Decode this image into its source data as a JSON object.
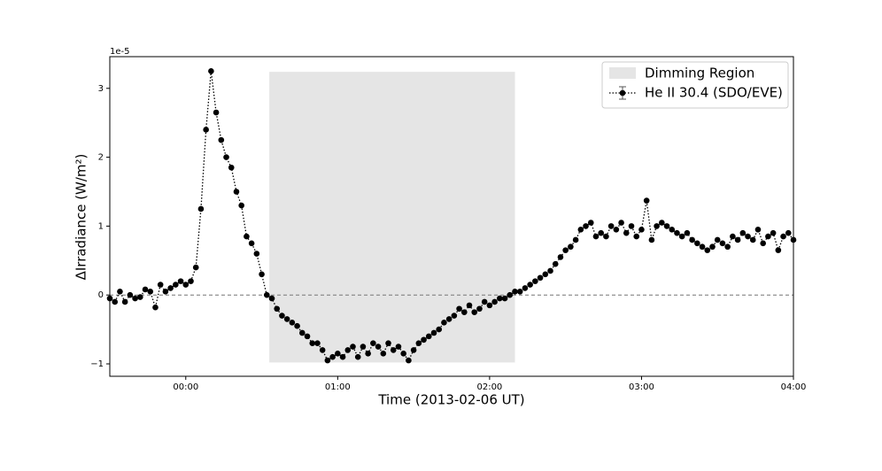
{
  "chart_data": {
    "type": "line",
    "xlabel": "Time (2013-02-06 UT)",
    "ylabel": "ΔIrradiance (W/m²)",
    "y_offset_label": "1e-5",
    "xlim": [
      -30,
      240
    ],
    "ylim": [
      -1.18,
      3.46
    ],
    "xticks": [
      {
        "value": 0,
        "label": "00:00"
      },
      {
        "value": 60,
        "label": "01:00"
      },
      {
        "value": 120,
        "label": "02:00"
      },
      {
        "value": 180,
        "label": "03:00"
      },
      {
        "value": 240,
        "label": "04:00"
      }
    ],
    "yticks": [
      {
        "value": -1,
        "label": "−1"
      },
      0,
      1,
      2,
      3
    ],
    "hline": 0,
    "legend": "upper right",
    "span": {
      "name": "Dimming Region",
      "color": "#e5e5e5",
      "x": [
        33,
        130
      ],
      "y": [
        -0.98,
        3.24
      ]
    },
    "x": [
      -30,
      -28,
      -26,
      -24,
      -22,
      -20,
      -18,
      -16,
      -14,
      -12,
      -10,
      -8,
      -6,
      -4,
      -2,
      0,
      2,
      4,
      6,
      8,
      10,
      12,
      14,
      16,
      18,
      20,
      22,
      24,
      26,
      28,
      30,
      32,
      34,
      36,
      38,
      40,
      42,
      44,
      46,
      48,
      50,
      52,
      54,
      56,
      58,
      60,
      62,
      64,
      66,
      68,
      70,
      72,
      74,
      76,
      78,
      80,
      82,
      84,
      86,
      88,
      90,
      92,
      94,
      96,
      98,
      100,
      102,
      104,
      106,
      108,
      110,
      112,
      114,
      116,
      118,
      120,
      122,
      124,
      126,
      128,
      130,
      132,
      134,
      136,
      138,
      140,
      142,
      144,
      146,
      148,
      150,
      152,
      154,
      156,
      158,
      160,
      162,
      164,
      166,
      168,
      170,
      172,
      174,
      176,
      178,
      180,
      182,
      184,
      186,
      188,
      190,
      192,
      194,
      196,
      198,
      200,
      202,
      204,
      206,
      208,
      210,
      212,
      214,
      216,
      218,
      220,
      222,
      224,
      226,
      228,
      230,
      232,
      234,
      236,
      238,
      240
    ],
    "series": [
      {
        "name": "He II 30.4 (SDO/EVE)",
        "color": "#000000",
        "values": [
          -0.05,
          -0.1,
          0.05,
          -0.1,
          0,
          -0.05,
          -0.03,
          0.08,
          0.05,
          -0.18,
          0.15,
          0.05,
          0.1,
          0.15,
          0.2,
          0.15,
          0.2,
          0.4,
          1.25,
          2.4,
          3.25,
          2.65,
          2.25,
          2.0,
          1.85,
          1.5,
          1.3,
          0.85,
          0.75,
          0.6,
          0.3,
          0.0,
          -0.05,
          -0.2,
          -0.3,
          -0.35,
          -0.4,
          -0.45,
          -0.55,
          -0.6,
          -0.7,
          -0.7,
          -0.8,
          -0.95,
          -0.9,
          -0.85,
          -0.9,
          -0.8,
          -0.75,
          -0.9,
          -0.75,
          -0.85,
          -0.7,
          -0.75,
          -0.85,
          -0.7,
          -0.8,
          -0.75,
          -0.85,
          -0.95,
          -0.8,
          -0.7,
          -0.65,
          -0.6,
          -0.55,
          -0.5,
          -0.4,
          -0.35,
          -0.3,
          -0.2,
          -0.25,
          -0.15,
          -0.25,
          -0.2,
          -0.1,
          -0.15,
          -0.1,
          -0.05,
          -0.05,
          0.0,
          0.05,
          0.05,
          0.1,
          0.15,
          0.2,
          0.25,
          0.3,
          0.35,
          0.45,
          0.55,
          0.65,
          0.7,
          0.8,
          0.95,
          1.0,
          1.05,
          0.85,
          0.9,
          0.85,
          1.0,
          0.95,
          1.05,
          0.9,
          1.0,
          0.85,
          0.95,
          1.37,
          0.8,
          1.0,
          1.05,
          1.0,
          0.95,
          0.9,
          0.85,
          0.9,
          0.8,
          0.75,
          0.7,
          0.65,
          0.7,
          0.8,
          0.75,
          0.7,
          0.85,
          0.8,
          0.9,
          0.85,
          0.8,
          0.95,
          0.75,
          0.85,
          0.9,
          0.65,
          0.85,
          0.9,
          0.8
        ]
      }
    ]
  }
}
